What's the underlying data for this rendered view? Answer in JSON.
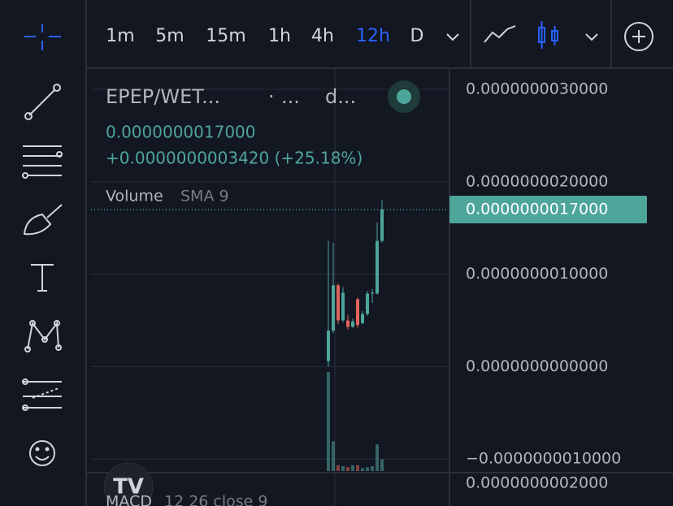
{
  "header": {
    "timeframes": [
      "1m",
      "5m",
      "15m",
      "1h",
      "4h",
      "12h",
      "D"
    ],
    "active_timeframe": "12h",
    "symbol": "EPEP/WET...",
    "interval": "·",
    "interval_extra": "...",
    "exchange": "d...",
    "change": "+0.0000000003420 (+25.18%)",
    "volume": "Volume",
    "volume_params": "SMA 9",
    "logo": "TV",
    "macd": "MACD",
    "macd_params": "12 26 close 9",
    "macd_axis": "0.0000000002000"
  },
  "chart_data": {
    "type": "candlestick",
    "categories": [
      null,
      null,
      null,
      null,
      null,
      null,
      null,
      null,
      null,
      null,
      null,
      null
    ],
    "open": [
      6e-11,
      3.9e-10,
      8.8e-10,
      5e-10,
      5e-10,
      4.3e-10,
      7.3e-10,
      4.7e-10,
      5.7e-10,
      7.9e-10,
      7.9e-10,
      1.36e-09
    ],
    "high": [
      1.36e-09,
      1.34e-09,
      9e-10,
      8.6e-10,
      5.6e-10,
      5.2e-10,
      7.5e-10,
      6e-10,
      8.2e-10,
      8.4e-10,
      1.56e-09,
      1.8e-09
    ],
    "low": [
      0.0,
      3.6e-10,
      4.6e-10,
      4.8e-10,
      4e-10,
      4.2e-10,
      4.2e-10,
      4.6e-10,
      5.5e-10,
      6.9e-10,
      7.8e-10,
      1.34e-09
    ],
    "close": [
      3.9e-10,
      8.8e-10,
      5e-10,
      8e-10,
      4.3e-10,
      4.9e-10,
      4.5e-10,
      5.7e-10,
      7.9e-10,
      8e-10,
      1.36e-09,
      1.7e-09
    ],
    "volume": [
      100,
      30,
      6,
      5,
      4,
      6,
      6,
      3,
      4,
      5,
      27,
      12
    ],
    "up_color": "#4ea59a",
    "down_color": "#e0645c",
    "ylim": [
      -1.13e-09,
      3.22e-09
    ],
    "yticks": [
      {
        "value": 3e-09,
        "label": "0.0000000030000"
      },
      {
        "value": 2e-09,
        "label": "0.0000000020000"
      },
      {
        "value": 1e-09,
        "label": "0.0000000010000"
      },
      {
        "value": 0,
        "label": "0.0000000000000"
      },
      {
        "value": -1e-09,
        "label": "−0.0000000010000"
      }
    ],
    "last_price": {
      "value": 1.7e-09,
      "label": "0.0000000017000"
    },
    "grid": true
  }
}
